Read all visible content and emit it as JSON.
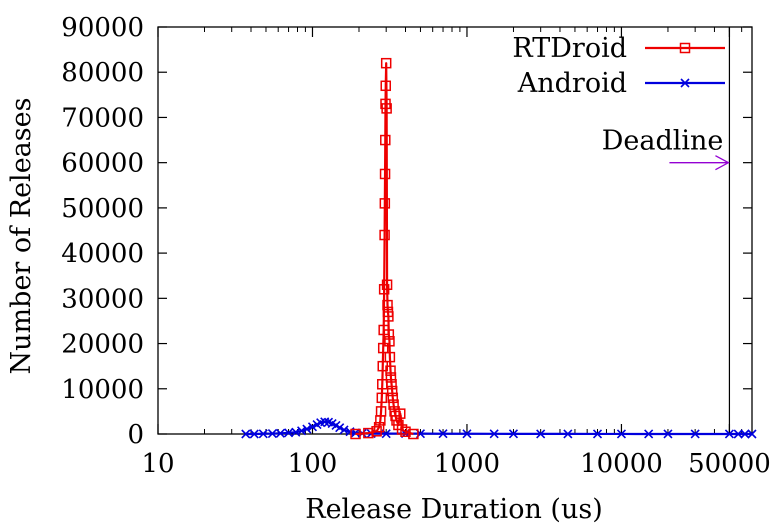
{
  "chart_data": {
    "type": "line",
    "xlabel": "Release Duration (us)",
    "ylabel": "Number of Releases",
    "x_scale": "log",
    "xlim": [
      10,
      70000
    ],
    "ylim": [
      0,
      90000
    ],
    "x_ticks": [
      10,
      100,
      1000,
      10000,
      50000
    ],
    "x_tick_labels": [
      "10",
      "100",
      "1000",
      "10000",
      "50000"
    ],
    "y_ticks": [
      0,
      10000,
      20000,
      30000,
      40000,
      50000,
      60000,
      70000,
      80000,
      90000
    ],
    "y_tick_labels": [
      "0",
      "10000",
      "20000",
      "30000",
      "40000",
      "50000",
      "60000",
      "70000",
      "80000",
      "90000"
    ],
    "grid": false,
    "legend_position": "top-right",
    "colors": {
      "RTDroid": "#ee0000",
      "Android": "#0000dd",
      "annotation": "#9400d3",
      "axes": "#000000"
    },
    "series": [
      {
        "name": "RTDroid",
        "marker": "square",
        "points": [
          [
            190,
            0
          ],
          [
            230,
            200
          ],
          [
            260,
            600
          ],
          [
            270,
            1500
          ],
          [
            275,
            3000
          ],
          [
            278,
            5000
          ],
          [
            281,
            8000
          ],
          [
            283,
            11000
          ],
          [
            285,
            15000
          ],
          [
            287,
            19000
          ],
          [
            289,
            23000
          ],
          [
            291,
            32000
          ],
          [
            293,
            44000
          ],
          [
            294,
            51000
          ],
          [
            295,
            57500
          ],
          [
            296,
            65000
          ],
          [
            297,
            73000
          ],
          [
            298,
            77000
          ],
          [
            300,
            82000
          ],
          [
            302,
            72000
          ],
          [
            304,
            33000
          ],
          [
            306,
            28500
          ],
          [
            308,
            27000
          ],
          [
            310,
            26000
          ],
          [
            312,
            22000
          ],
          [
            315,
            20500
          ],
          [
            317,
            17000
          ],
          [
            320,
            14000
          ],
          [
            322,
            12500
          ],
          [
            325,
            11000
          ],
          [
            328,
            9500
          ],
          [
            331,
            8000
          ],
          [
            335,
            6500
          ],
          [
            340,
            5000
          ],
          [
            345,
            4000
          ],
          [
            350,
            3000
          ],
          [
            360,
            2000
          ],
          [
            370,
            4500
          ],
          [
            380,
            1000
          ],
          [
            400,
            500
          ],
          [
            450,
            0
          ]
        ]
      },
      {
        "name": "Android",
        "marker": "x",
        "points": [
          [
            37,
            0
          ],
          [
            42,
            0
          ],
          [
            48,
            50
          ],
          [
            55,
            100
          ],
          [
            62,
            150
          ],
          [
            70,
            250
          ],
          [
            78,
            400
          ],
          [
            85,
            700
          ],
          [
            92,
            1100
          ],
          [
            100,
            1600
          ],
          [
            107,
            2100
          ],
          [
            113,
            2500
          ],
          [
            120,
            2700
          ],
          [
            127,
            2600
          ],
          [
            134,
            2300
          ],
          [
            142,
            1900
          ],
          [
            150,
            1400
          ],
          [
            160,
            900
          ],
          [
            175,
            500
          ],
          [
            190,
            250
          ],
          [
            210,
            150
          ],
          [
            240,
            100
          ],
          [
            300,
            80
          ],
          [
            400,
            100
          ],
          [
            500,
            80
          ],
          [
            700,
            60
          ],
          [
            1000,
            50
          ],
          [
            1500,
            40
          ],
          [
            2000,
            30
          ],
          [
            3000,
            20
          ],
          [
            4500,
            20
          ],
          [
            7000,
            10
          ],
          [
            10000,
            10
          ],
          [
            15000,
            5
          ],
          [
            20000,
            5
          ],
          [
            30000,
            5
          ],
          [
            50000,
            5
          ],
          [
            57000,
            0
          ],
          [
            63000,
            0
          ],
          [
            70000,
            0
          ]
        ]
      }
    ],
    "annotations": [
      {
        "text": "Deadline",
        "type": "vertical-line",
        "x": 50000,
        "arrow_y": 60000
      }
    ]
  }
}
